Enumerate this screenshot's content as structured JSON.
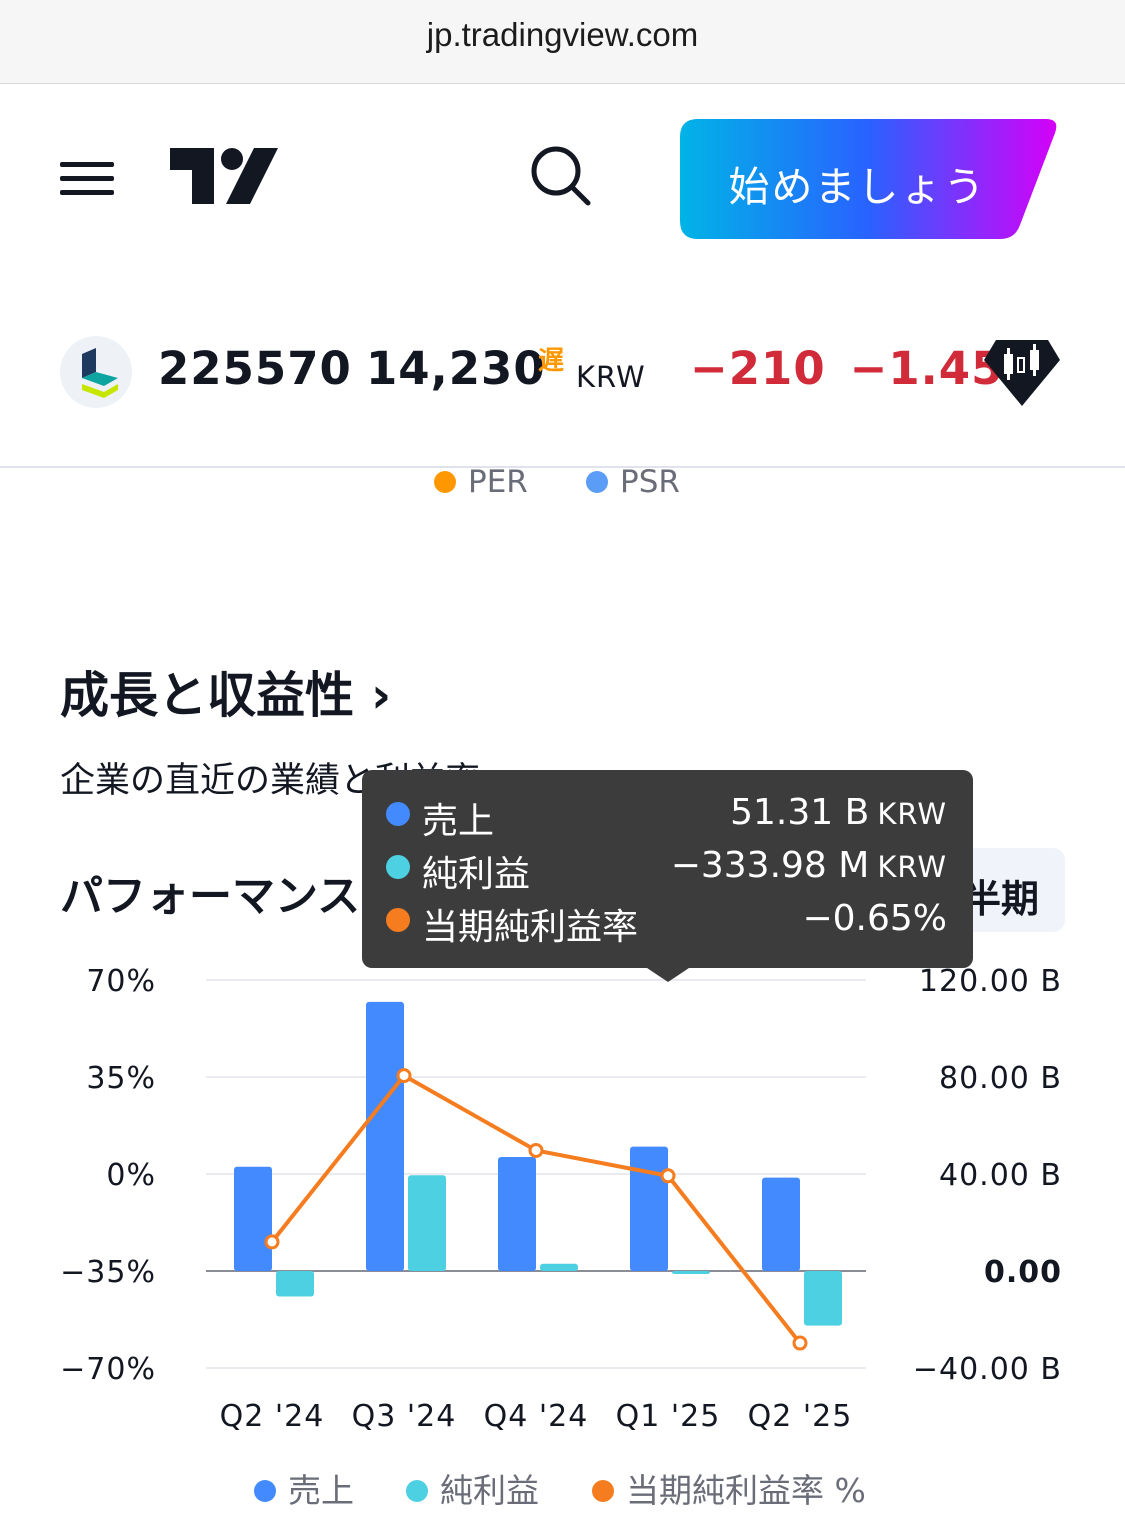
{
  "browser": {
    "url": "jp.tradingview.com"
  },
  "header": {
    "cta_label": "始めましょう"
  },
  "symbol": {
    "ticker": "225570",
    "price": "14,230",
    "delay_badge": "遅",
    "currency": "KRW",
    "change": "−210",
    "change_pct": "−1.45"
  },
  "top_legend": [
    {
      "label": "PER",
      "color": "#ff9800"
    },
    {
      "label": "PSR",
      "color": "#5b9cf6"
    }
  ],
  "section": {
    "title": "成長と収益性 ›",
    "subtitle": "企業の直近の業績と利益率",
    "perf_title": "パフォーマンス",
    "period_button": "半期"
  },
  "tooltip": {
    "rows": [
      {
        "name": "売上",
        "value": "51.31 B",
        "unit": "KRW",
        "color": "#448aff"
      },
      {
        "name": "純利益",
        "value": "−333.98 M",
        "unit": "KRW",
        "color": "#4dd0e1"
      },
      {
        "name": "当期純利益率",
        "value": "−0.65%",
        "unit": "",
        "color": "#f57c1f"
      }
    ]
  },
  "chart_data": {
    "type": "bar",
    "categories": [
      "Q2 '24",
      "Q3 '24",
      "Q4 '24",
      "Q1 '25",
      "Q2 '25"
    ],
    "series": [
      {
        "name": "売上",
        "type": "bar",
        "axis": "right",
        "color": "#448aff",
        "values": [
          43,
          111,
          47,
          51.31,
          38.5
        ]
      },
      {
        "name": "純利益",
        "type": "bar",
        "axis": "right",
        "color": "#4dd0e1",
        "values": [
          -10.5,
          39.5,
          3,
          -0.33398,
          -22.5
        ]
      },
      {
        "name": "当期純利益率 %",
        "type": "line",
        "axis": "left",
        "color": "#f57c1f",
        "values": [
          -24.5,
          35.5,
          8.5,
          -0.65,
          -61
        ]
      }
    ],
    "left_axis": {
      "ticks": [
        "70%",
        "35%",
        "0%",
        "−35%",
        "−70%"
      ],
      "range": [
        -70,
        70
      ]
    },
    "right_axis": {
      "ticks": [
        "120.00 B",
        "80.00 B",
        "40.00 B",
        "0.00",
        "−40.00 B"
      ],
      "range": [
        -40,
        120
      ]
    },
    "grid": true,
    "legend_position": "bottom"
  },
  "legend": [
    {
      "label": "売上",
      "color": "#448aff"
    },
    {
      "label": "純利益",
      "color": "#4dd0e1"
    },
    {
      "label": "当期純利益率 %",
      "color": "#f57c1f"
    }
  ]
}
